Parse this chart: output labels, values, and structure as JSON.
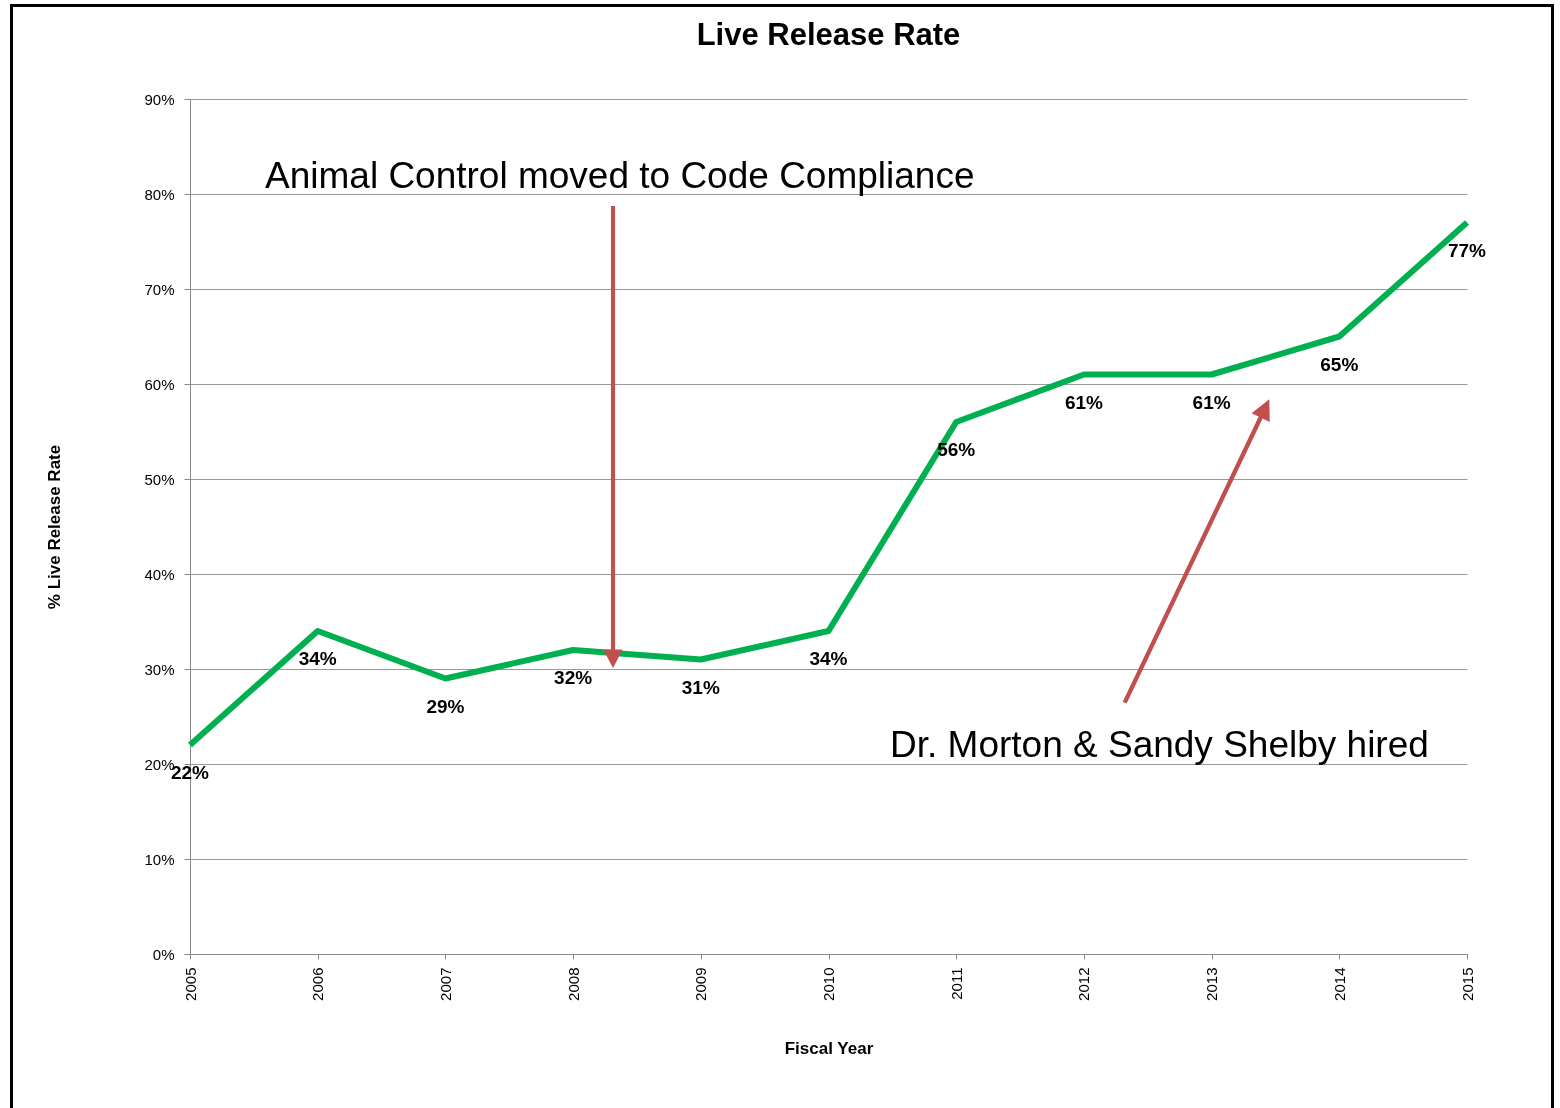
{
  "chart_data": {
    "type": "line",
    "title": "Live Release Rate",
    "xlabel": "Fiscal Year",
    "ylabel": "% Live Release Rate",
    "categories": [
      "2005",
      "2006",
      "2007",
      "2008",
      "2009",
      "2010",
      "2011",
      "2012",
      "2013",
      "2014",
      "2015"
    ],
    "series": [
      {
        "color": "#00b050",
        "values": [
          22,
          34,
          29,
          32,
          31,
          34,
          56,
          61,
          61,
          65,
          77
        ],
        "value_labels": [
          "22%",
          "34%",
          "29%",
          "32%",
          "31%",
          "34%",
          "56%",
          "61%",
          "61%",
          "65%",
          "77%"
        ]
      }
    ],
    "ylim": [
      0,
      90
    ],
    "yticks": [
      {
        "value": 0,
        "label": "0%"
      },
      {
        "value": 10,
        "label": "10%"
      },
      {
        "value": 20,
        "label": "20%"
      },
      {
        "value": 30,
        "label": "30%"
      },
      {
        "value": 40,
        "label": "40%"
      },
      {
        "value": 50,
        "label": "50%"
      },
      {
        "value": 60,
        "label": "60%"
      },
      {
        "value": 70,
        "label": "70%"
      },
      {
        "value": 80,
        "label": "80%"
      },
      {
        "value": 90,
        "label": "90%"
      }
    ],
    "grid": "y",
    "marker": "none",
    "line_style": "solid",
    "annotations": [
      "Animal Control moved to Code Compliance",
      "Dr. Morton & Sandy Shelby hired"
    ]
  }
}
